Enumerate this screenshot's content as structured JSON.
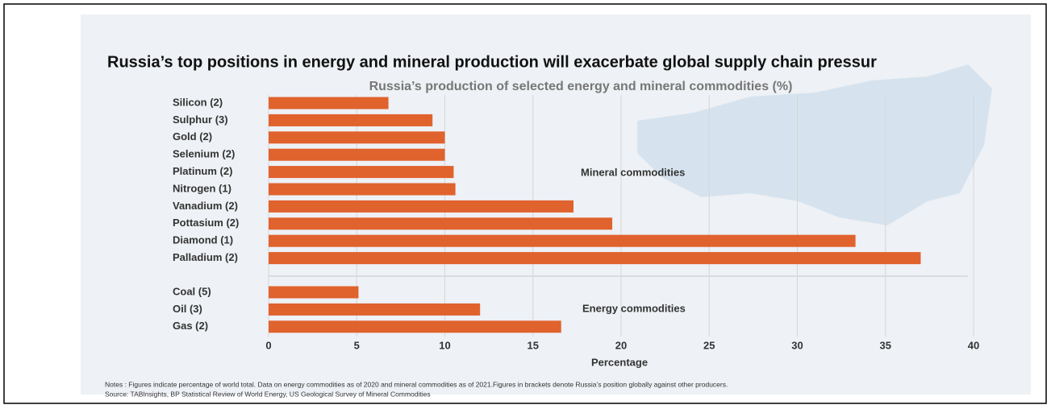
{
  "chart_data": {
    "type": "bar",
    "orientation": "horizontal",
    "title": "Russia’s top positions in energy and mineral production will exacerbate global supply chain pressur",
    "subtitle": "Russia’s production of selected energy and mineral commodities (%)",
    "x_label": "Percentage",
    "color": "#e0622d",
    "grid": true,
    "xlim": [
      0,
      40
    ],
    "xticks": [
      0,
      5,
      10,
      15,
      20,
      25,
      30,
      35,
      40
    ],
    "groups": [
      {
        "label": "Mineral commodities",
        "categories": [
          "Silicon (2)",
          "Sulphur (3)",
          "Gold (2)",
          "Selenium (2)",
          "Platinum (2)",
          "Nitrogen (1)",
          "Vanadium (2)",
          "Pottasium (2)",
          "Diamond (1)",
          "Palladium (2)"
        ],
        "values": [
          6.8,
          9.3,
          10,
          10,
          10.5,
          10.6,
          17.3,
          19.5,
          33.3,
          37
        ]
      },
      {
        "label": "Energy commodities",
        "categories": [
          "Coal (5)",
          "Oil (3)",
          "Gas (2)"
        ],
        "values": [
          5.1,
          12,
          16.6
        ]
      }
    ],
    "notes": "Notes : Figures indicate percentage of world total. Data on energy commodities as of 2020 and mineral commodities as of 2021.Figures in brackets denote Russia’s position globally against other producers.",
    "source": "Source: TABInsights, BP Statistical Review of World Energy, US Geological Survey of Mineral Commodities"
  }
}
